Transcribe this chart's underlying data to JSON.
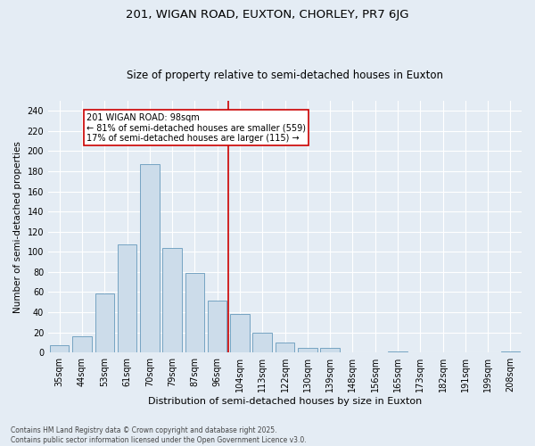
{
  "title1": "201, WIGAN ROAD, EUXTON, CHORLEY, PR7 6JG",
  "title2": "Size of property relative to semi-detached houses in Euxton",
  "xlabel": "Distribution of semi-detached houses by size in Euxton",
  "ylabel": "Number of semi-detached properties",
  "categories": [
    "35sqm",
    "44sqm",
    "53sqm",
    "61sqm",
    "70sqm",
    "79sqm",
    "87sqm",
    "96sqm",
    "104sqm",
    "113sqm",
    "122sqm",
    "130sqm",
    "139sqm",
    "148sqm",
    "156sqm",
    "165sqm",
    "173sqm",
    "182sqm",
    "191sqm",
    "199sqm",
    "208sqm"
  ],
  "values": [
    7,
    16,
    59,
    107,
    187,
    104,
    79,
    52,
    38,
    20,
    10,
    5,
    5,
    0,
    0,
    1,
    0,
    0,
    0,
    0,
    1
  ],
  "bar_color": "#ccdcea",
  "bar_edge_color": "#6699bb",
  "background_color": "#e4ecf4",
  "grid_color": "#ffffff",
  "vline_x": 7.5,
  "vline_color": "#cc0000",
  "annotation_text": "201 WIGAN ROAD: 98sqm\n← 81% of semi-detached houses are smaller (559)\n17% of semi-detached houses are larger (115) →",
  "annotation_box_color": "#ffffff",
  "annotation_box_edge": "#cc0000",
  "ylim": [
    0,
    250
  ],
  "yticks": [
    0,
    20,
    40,
    60,
    80,
    100,
    120,
    140,
    160,
    180,
    200,
    220,
    240
  ],
  "footnote": "Contains HM Land Registry data © Crown copyright and database right 2025.\nContains public sector information licensed under the Open Government Licence v3.0.",
  "title1_fontsize": 9.5,
  "title2_fontsize": 8.5,
  "xlabel_fontsize": 8,
  "ylabel_fontsize": 7.5,
  "tick_fontsize": 7,
  "annot_fontsize": 7,
  "footnote_fontsize": 5.5
}
